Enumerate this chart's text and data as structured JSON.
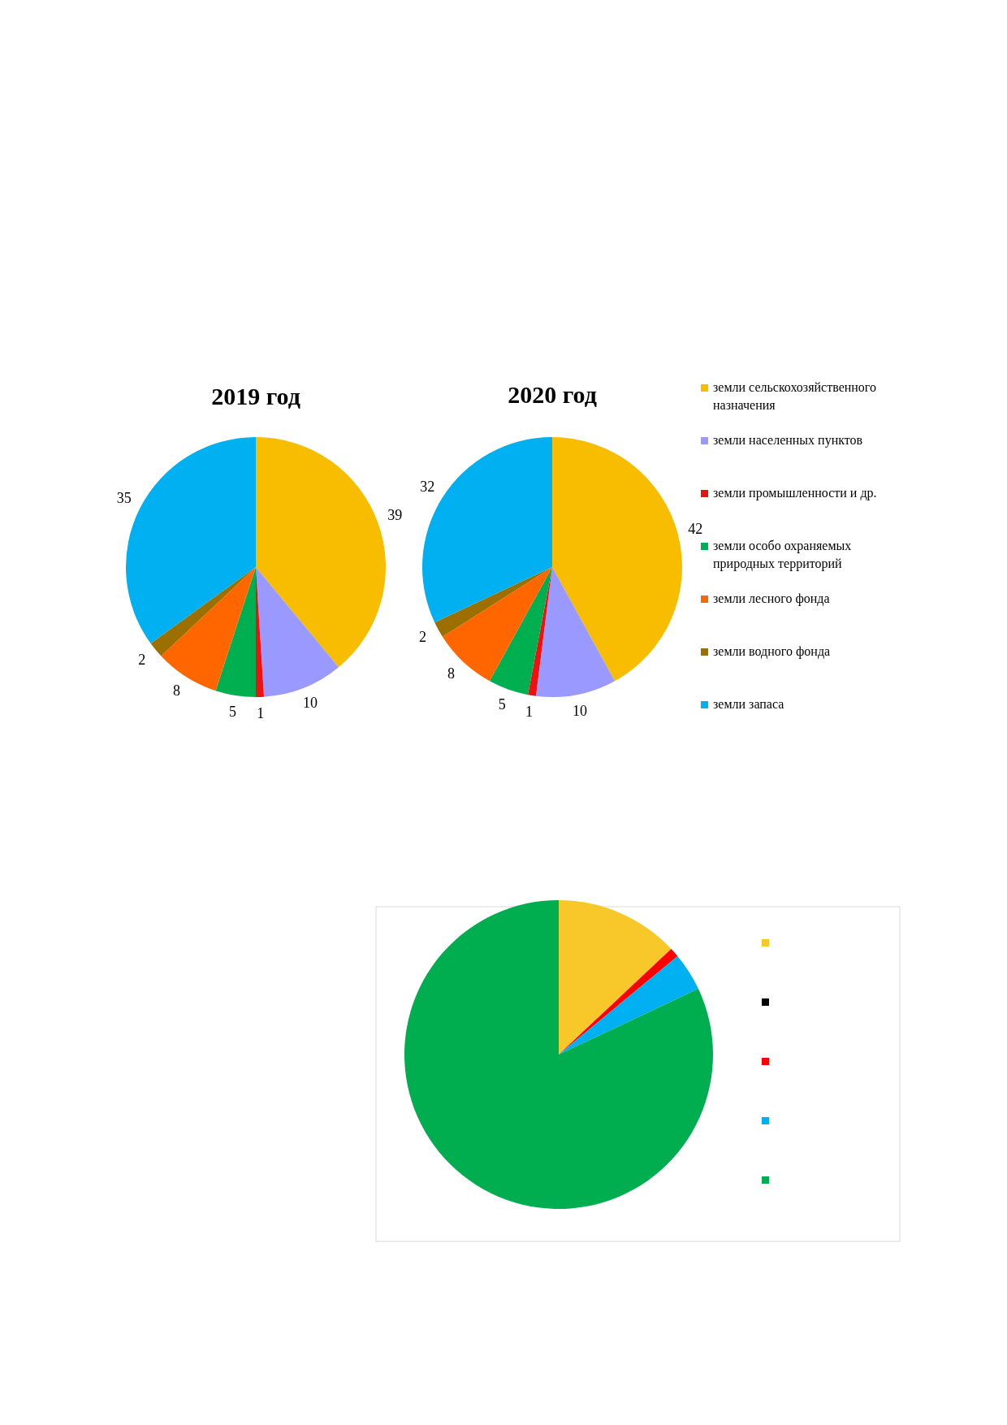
{
  "chart_data": [
    {
      "type": "pie",
      "title": "2019 год",
      "categories": [
        null,
        null,
        null,
        null,
        null,
        null,
        null
      ],
      "values": [
        39,
        10,
        1,
        5,
        8,
        2,
        35
      ],
      "colors": [
        "#f9bd00",
        "#9999ff",
        "#ee1111",
        "#00b050",
        "#ff6600",
        "#9c6f00",
        "#00b0f0"
      ],
      "data_labels": true,
      "legend": false
    },
    {
      "type": "pie",
      "title": "2020 год",
      "categories": [
        "земли сельскохозяйственного назначения",
        "земли населенных  пунктов",
        "земли промышленности  и др.",
        "земли особо охраняемых природных территорий",
        "земли лесного фонда",
        "земли водного фонда",
        "земли запаса"
      ],
      "values": [
        42,
        10,
        1,
        5,
        8,
        2,
        32
      ],
      "colors": [
        "#f9bd00",
        "#9999ff",
        "#ee1111",
        "#00b050",
        "#ff6600",
        "#9c6f00",
        "#00b0f0"
      ],
      "data_labels": true,
      "legend": "right"
    },
    {
      "type": "pie",
      "categories": [
        null,
        null,
        null,
        null,
        null
      ],
      "values": [
        13,
        0,
        1,
        4,
        82
      ],
      "colors": [
        "#f8c82a",
        "#000000",
        "#ff0000",
        "#00b0f0",
        "#00ae4f"
      ]
    }
  ]
}
